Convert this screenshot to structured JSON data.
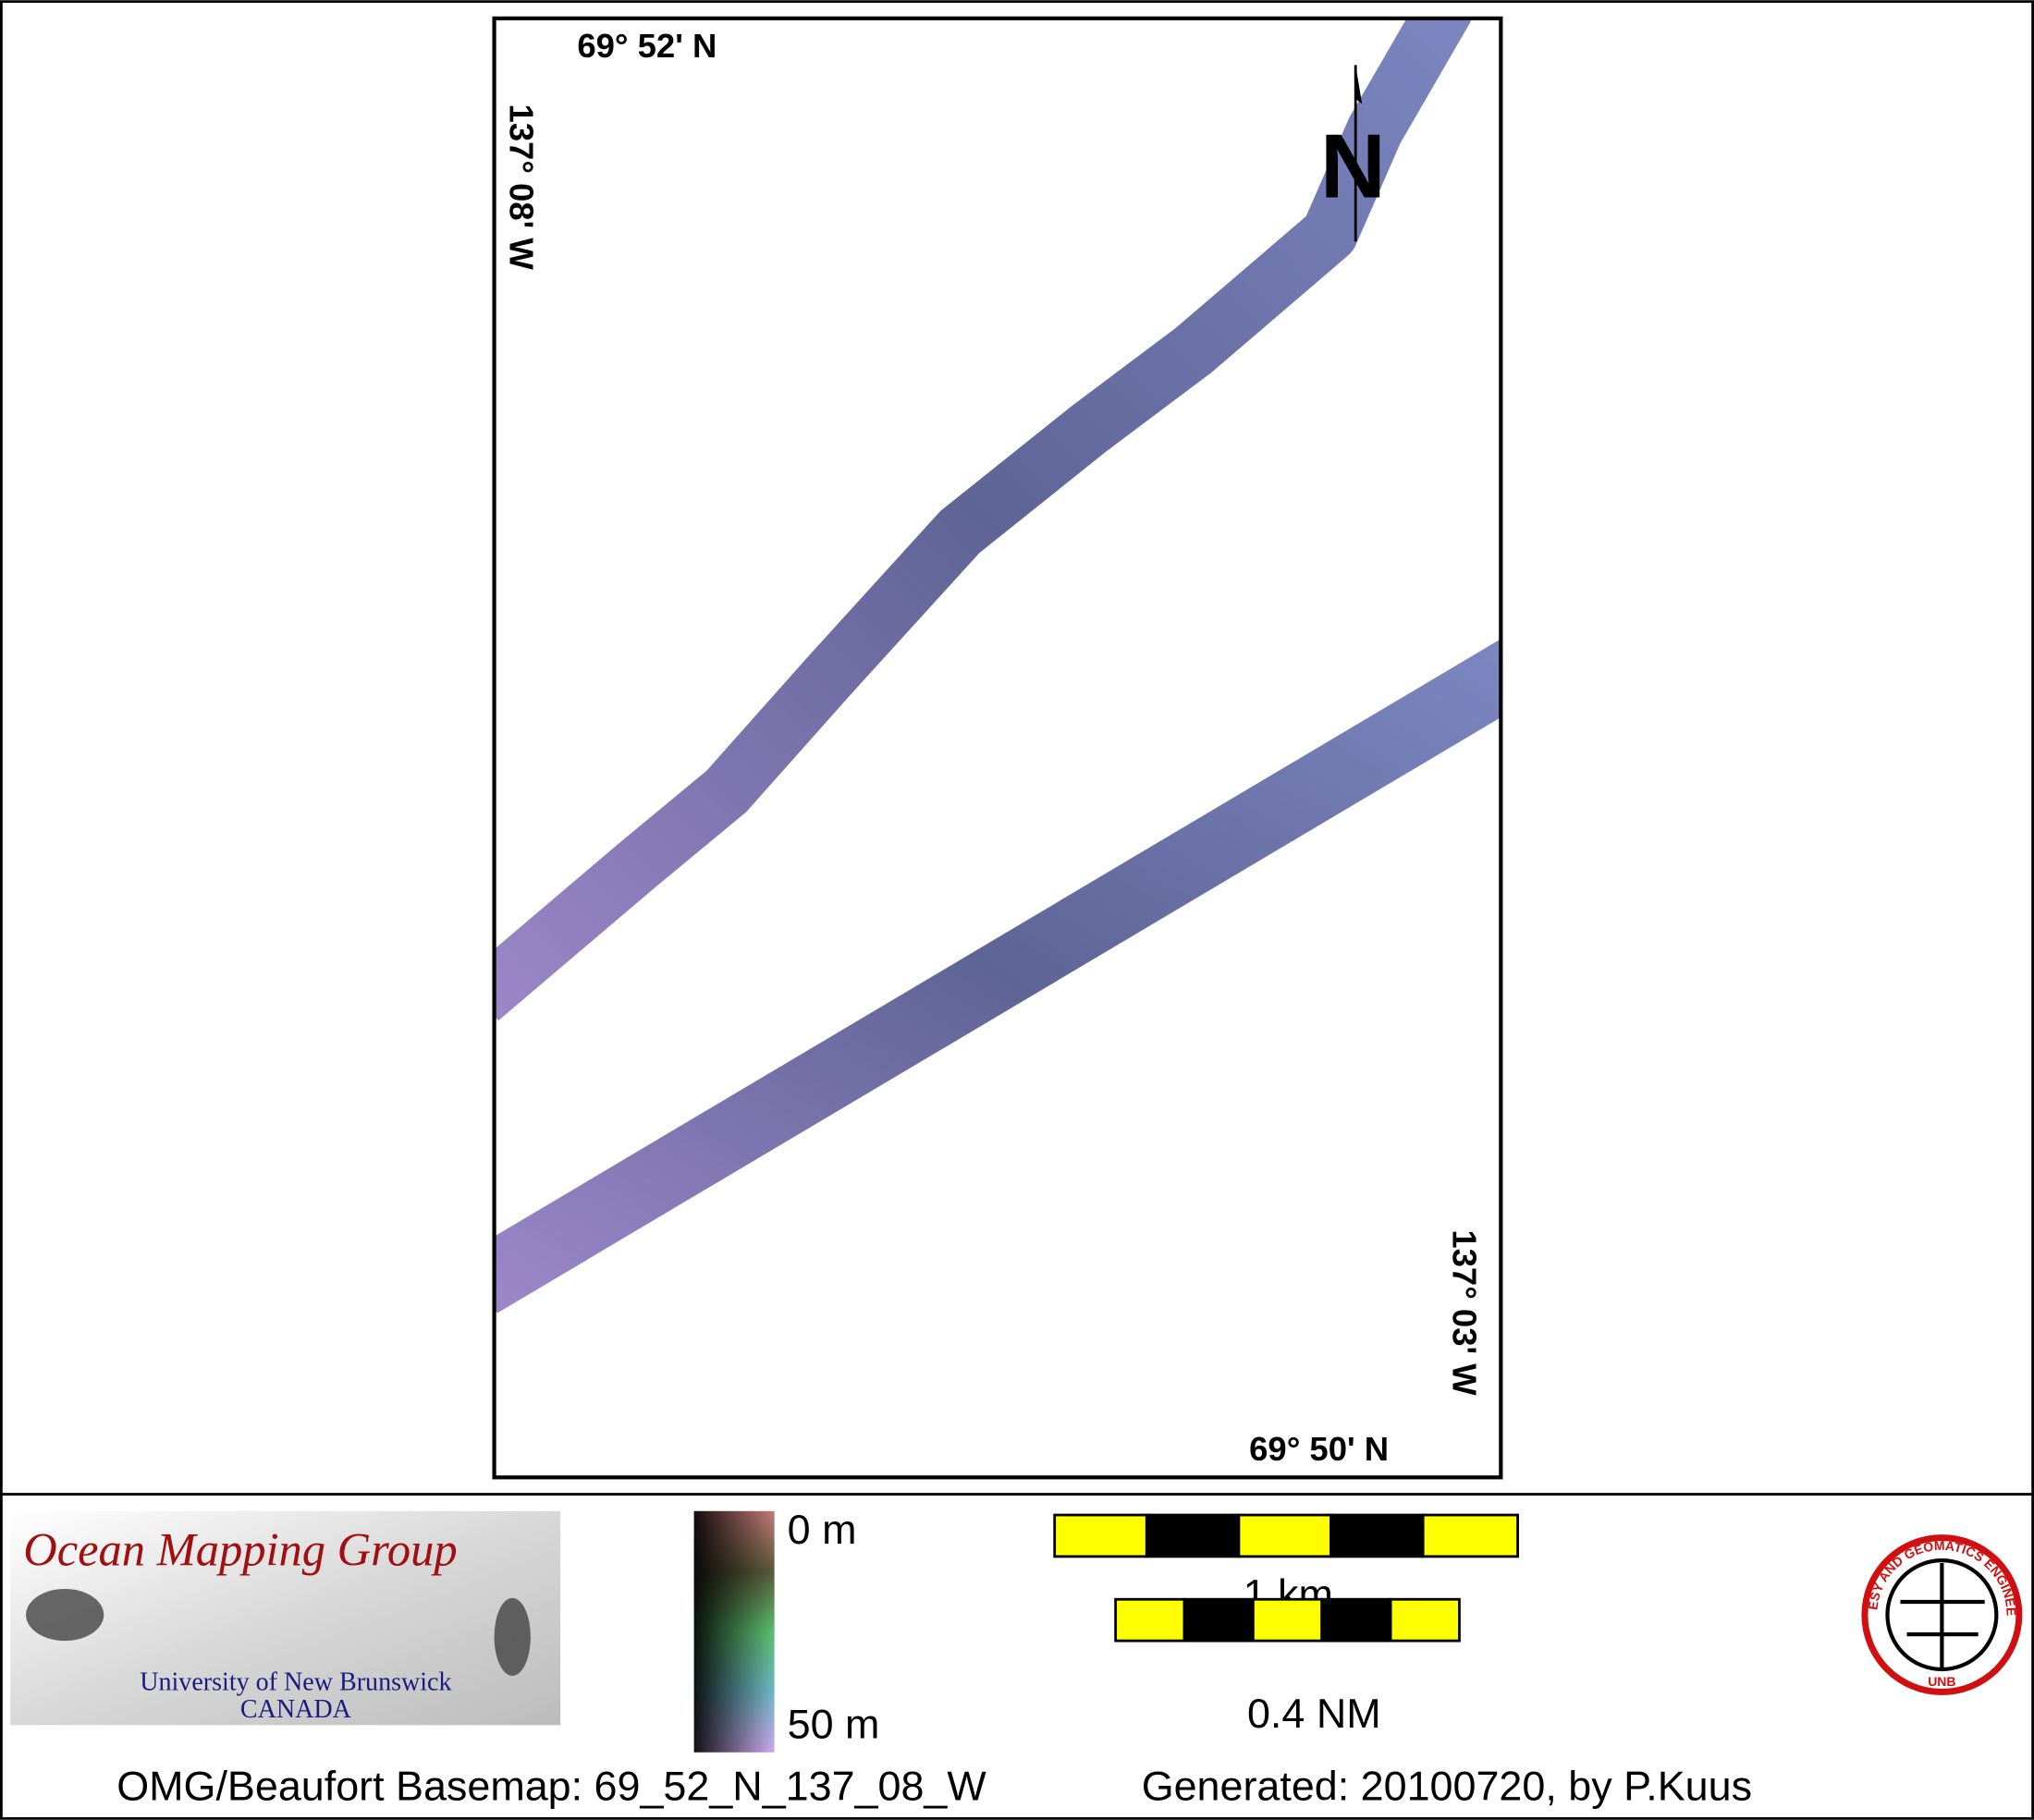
{
  "map": {
    "top_lat": "69° 52' N",
    "left_lon": "137° 08' W",
    "right_lon": "137° 03' W",
    "bottom_lat": "69° 50' N",
    "north_label": "N"
  },
  "legend": {
    "logo": {
      "title": "Ocean Mapping Group",
      "university": "University of New Brunswick",
      "country": "CANADA"
    },
    "depth_scale": {
      "top": "0 m",
      "bottom": "50 m"
    },
    "scale_bars": [
      "1 km",
      "0.4 NM"
    ],
    "emblem": {
      "ring_text": "GEODESY AND GEOMATICS ENGINEERING",
      "bottom": "UNB"
    }
  },
  "footer": {
    "basemap": "OMG/Beaufort Basemap: 69_52_N_137_08_W",
    "generated": "Generated: 20100720, by P.Kuus"
  }
}
